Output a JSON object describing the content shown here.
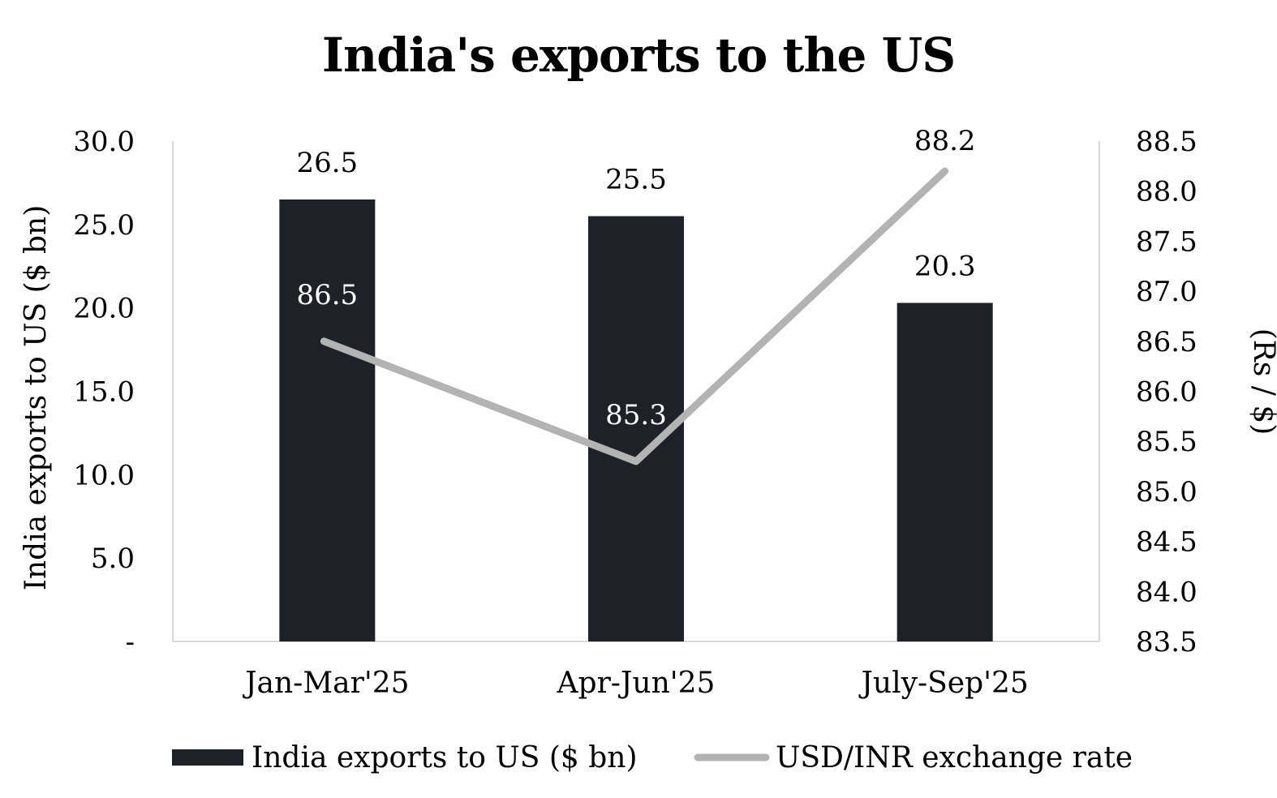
{
  "chart_data": {
    "type": "bar",
    "title": "India's exports to the US",
    "categories": [
      "Jan-Mar'25",
      "Apr-Jun'25",
      "July-Sep'25"
    ],
    "series": [
      {
        "name": "India exports to US  ($ bn)",
        "type": "bar",
        "axis": "left",
        "values": [
          26.5,
          25.5,
          20.3
        ],
        "labels": [
          "26.5",
          "25.5",
          "20.3"
        ],
        "color": "#1f2129"
      },
      {
        "name": "USD/INR exchange rate",
        "type": "line",
        "axis": "right",
        "values": [
          86.5,
          85.3,
          88.2
        ],
        "labels": [
          "86.5",
          "85.3",
          "88.2"
        ],
        "color": "#b3b3b3"
      }
    ],
    "ylabel": "India exports to US ($ bn)",
    "ylabel_right": "(Rs / $)",
    "ylim": [
      0,
      30
    ],
    "ylim_right": [
      83.5,
      88.5
    ],
    "yticks": [
      "-",
      "5.0",
      "10.0",
      "15.0",
      "20.0",
      "25.0",
      "30.0"
    ],
    "yticks_right": [
      "83.5",
      "84.0",
      "84.5",
      "85.0",
      "85.5",
      "86.0",
      "86.5",
      "87.0",
      "87.5",
      "88.0",
      "88.5"
    ],
    "grid": false,
    "legend": "bottom"
  }
}
